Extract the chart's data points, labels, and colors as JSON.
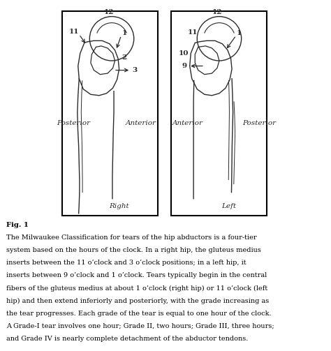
{
  "title": "Fig. 1",
  "caption_lines": [
    [
      "Fig. 1",
      true
    ],
    [
      "The Milwaukee Classification for tears of the hip abductors is a four-tier",
      false
    ],
    [
      "system based on the hours of the clock. In a right hip, the gluteus medius",
      false
    ],
    [
      "inserts between the 11 o’clock and 3 o’clock positions; in a left hip, it",
      false
    ],
    [
      "inserts between 9 o’clock and 1 o’clock. Tears typically begin in the central",
      false
    ],
    [
      "fibers of the gluteus medius at about 1 o’clock (right hip) or 11 o’clock (left",
      false
    ],
    [
      "hip) and then extend inferiorly and posteriorly, with the grade increasing as",
      false
    ],
    [
      "the tear progresses. Each grade of the tear is equal to one hour of the clock.",
      false
    ],
    [
      "A Grade-I tear involves one hour; Grade II, two hours; Grade III, three hours;",
      false
    ],
    [
      "and Grade IV is nearly complete detachment of the abductor tendons.",
      false
    ]
  ],
  "bg_color": "#ffffff",
  "drawing_color": "#2a2a2a",
  "fig_width": 4.74,
  "fig_height": 5.03,
  "dpi": 100
}
